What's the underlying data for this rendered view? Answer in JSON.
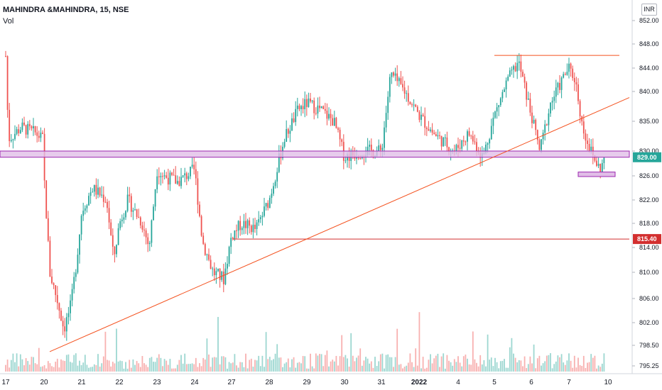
{
  "header": {
    "symbol_title": "MAHINDRA &MAHINDRA, 15, NSE",
    "volume_label": "Vol",
    "currency": "INR"
  },
  "colors": {
    "up": "#26a69a",
    "down": "#ef5350",
    "trend": "#f4511e",
    "zone": "#9c27b0",
    "zone_fill": "#e1bee7",
    "support": "#d32f2f"
  },
  "chart_data": {
    "type": "candlestick",
    "y_ticks": [
      "852.00",
      "848.00",
      "844.00",
      "840.00",
      "835.00",
      "830.00",
      "826.00",
      "822.00",
      "818.00",
      "814.00",
      "810.00",
      "806.00",
      "802.00",
      "798.50",
      "795.25"
    ],
    "x_ticks": [
      "17",
      "20",
      "21",
      "22",
      "23",
      "24",
      "27",
      "28",
      "29",
      "30",
      "31",
      "2022",
      "4",
      "5",
      "6",
      "7",
      "10"
    ],
    "last_price_tag": "829.00",
    "level_tag": "815.40",
    "annotations": {
      "support_zone": [
        829.0,
        830.0
      ],
      "support_line": 815.4,
      "resistance_line": 846.1,
      "small_zone": [
        826.0,
        826.5
      ],
      "trendline": {
        "start": [
          "20",
          797.5
        ],
        "end": [
          "10",
          838.5
        ]
      }
    },
    "series_note": ""
  }
}
